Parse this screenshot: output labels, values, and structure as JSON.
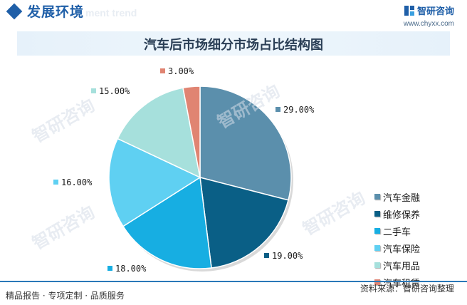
{
  "header": {
    "section_title": "发展环境",
    "section_subtitle": "ment trend",
    "brand_name": "智研咨询",
    "brand_url": "www.chyxx.com"
  },
  "watermark_text": "智研咨询",
  "chart_data": {
    "type": "pie",
    "title": "汽车后市场细分市场占比结构图",
    "categories": [
      "汽车金融",
      "维修保养",
      "二手车",
      "汽车保险",
      "汽车用品",
      "汽车租赁"
    ],
    "values": [
      29,
      19,
      18,
      16,
      15,
      3
    ],
    "labels": [
      "29.00%",
      "19.00%",
      "18.00%",
      "16.00%",
      "15.00%",
      "3.00%"
    ],
    "colors": [
      "#5b8fac",
      "#0a5f86",
      "#17aee2",
      "#5fd0f2",
      "#a6e0dc",
      "#e08472"
    ],
    "legend_position": "right"
  },
  "footer": {
    "left": "精品报告 · 专项定制 · 品质服务",
    "right": "资料来源：智研咨询整理"
  }
}
